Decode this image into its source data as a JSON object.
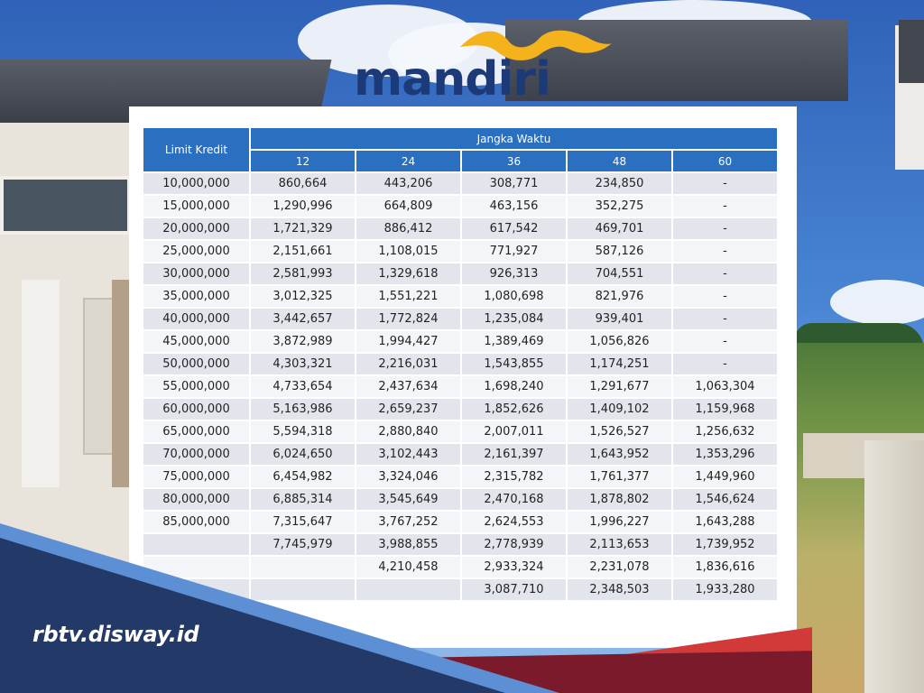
{
  "logo": {
    "text": "mandiri",
    "brand_color": "#1d3a78",
    "wave_color": "#f4b21c"
  },
  "table": {
    "limit_header": "Limit Kredit",
    "term_header": "Jangka Waktu",
    "terms": [
      "12",
      "24",
      "36",
      "48",
      "60"
    ],
    "rows": [
      [
        "10,000,000",
        "860,664",
        "443,206",
        "308,771",
        "234,850",
        "-"
      ],
      [
        "15,000,000",
        "1,290,996",
        "664,809",
        "463,156",
        "352,275",
        "-"
      ],
      [
        "20,000,000",
        "1,721,329",
        "886,412",
        "617,542",
        "469,701",
        "-"
      ],
      [
        "25,000,000",
        "2,151,661",
        "1,108,015",
        "771,927",
        "587,126",
        "-"
      ],
      [
        "30,000,000",
        "2,581,993",
        "1,329,618",
        "926,313",
        "704,551",
        "-"
      ],
      [
        "35,000,000",
        "3,012,325",
        "1,551,221",
        "1,080,698",
        "821,976",
        "-"
      ],
      [
        "40,000,000",
        "3,442,657",
        "1,772,824",
        "1,235,084",
        "939,401",
        "-"
      ],
      [
        "45,000,000",
        "3,872,989",
        "1,994,427",
        "1,389,469",
        "1,056,826",
        "-"
      ],
      [
        "50,000,000",
        "4,303,321",
        "2,216,031",
        "1,543,855",
        "1,174,251",
        "-"
      ],
      [
        "55,000,000",
        "4,733,654",
        "2,437,634",
        "1,698,240",
        "1,291,677",
        "1,063,304"
      ],
      [
        "60,000,000",
        "5,163,986",
        "2,659,237",
        "1,852,626",
        "1,409,102",
        "1,159,968"
      ],
      [
        "65,000,000",
        "5,594,318",
        "2,880,840",
        "2,007,011",
        "1,526,527",
        "1,256,632"
      ],
      [
        "70,000,000",
        "6,024,650",
        "3,102,443",
        "2,161,397",
        "1,643,952",
        "1,353,296"
      ],
      [
        "75,000,000",
        "6,454,982",
        "3,324,046",
        "2,315,782",
        "1,761,377",
        "1,449,960"
      ],
      [
        "80,000,000",
        "6,885,314",
        "3,545,649",
        "2,470,168",
        "1,878,802",
        "1,546,624"
      ],
      [
        "85,000,000",
        "7,315,647",
        "3,767,252",
        "2,624,553",
        "1,996,227",
        "1,643,288"
      ],
      [
        "",
        "7,745,979",
        "3,988,855",
        "2,778,939",
        "2,113,653",
        "1,739,952"
      ],
      [
        "",
        "",
        "4,210,458",
        "2,933,324",
        "2,231,078",
        "1,836,616"
      ],
      [
        "",
        "",
        "",
        "3,087,710",
        "2,348,503",
        "1,933,280"
      ]
    ]
  },
  "footer": {
    "site": "rbtv.disway.id"
  },
  "colors": {
    "header_blue": "#2a6fc0",
    "band_navy": "#233a68",
    "band_red": "#d23a3a"
  }
}
